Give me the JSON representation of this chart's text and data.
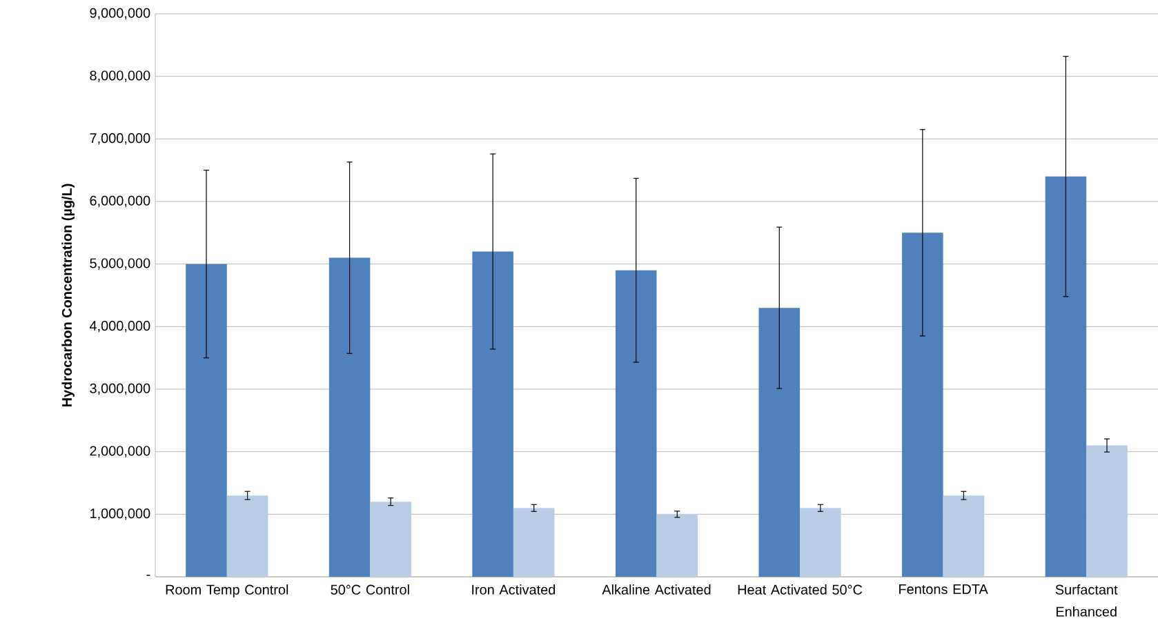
{
  "chart_data": {
    "type": "bar",
    "ylabel": "Hydrocarbon Concentration (µg/L)",
    "categories": [
      "Room Temp Control",
      "50°C Control",
      "Iron Activated",
      "Alkaline Activated",
      "Heat Activated 50°C",
      "Fentons EDTA",
      "Surfactant Enhanced"
    ],
    "series": [
      {
        "color": "#4f81bd",
        "values": [
          5000000,
          5100000,
          5200000,
          4900000,
          4300000,
          5500000,
          6400000
        ],
        "errors": [
          1500000,
          1530000,
          1560000,
          1470000,
          1290000,
          1650000,
          1920000
        ]
      },
      {
        "color": "#b9cde5",
        "values": [
          1300000,
          1200000,
          1100000,
          1000000,
          1100000,
          1300000,
          2100000
        ],
        "errors": [
          65000,
          60000,
          55000,
          50000,
          55000,
          65000,
          105000
        ]
      }
    ],
    "ylim": [
      0,
      9000000
    ],
    "yticks": [
      {
        "value": 0,
        "label": "-"
      },
      {
        "value": 1000000,
        "label": "1,000,000"
      },
      {
        "value": 2000000,
        "label": "2,000,000"
      },
      {
        "value": 3000000,
        "label": "3,000,000"
      },
      {
        "value": 4000000,
        "label": "4,000,000"
      },
      {
        "value": 5000000,
        "label": "5,000,000"
      },
      {
        "value": 6000000,
        "label": "6,000,000"
      },
      {
        "value": 7000000,
        "label": "7,000,000"
      },
      {
        "value": 8000000,
        "label": "8,000,000"
      },
      {
        "value": 9000000,
        "label": "9,000,000"
      }
    ],
    "grid": "y"
  }
}
